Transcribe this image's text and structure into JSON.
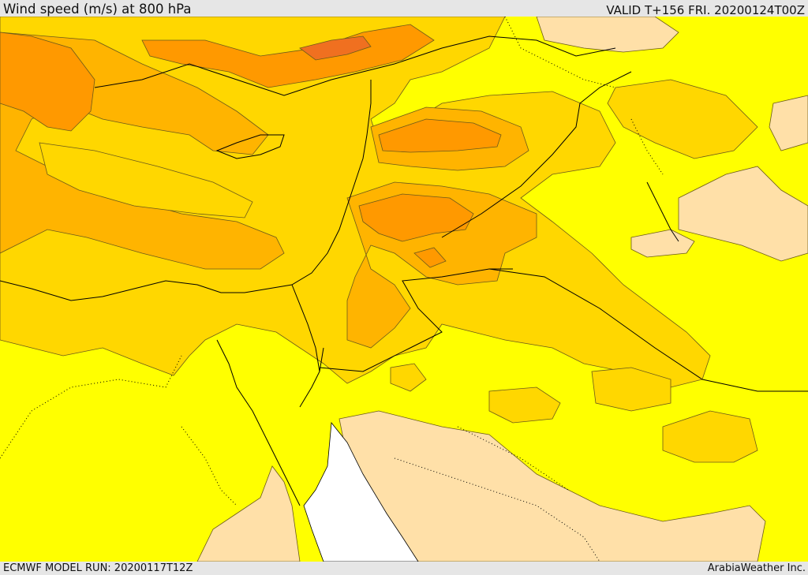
{
  "header": {
    "title": "Wind speed (m/s) at 800 hPa",
    "valid": "VALID T+156 FRI. 20200124T00Z"
  },
  "footer": {
    "model_run": "ECMWF MODEL RUN: 20200117T12Z",
    "credit": "ArabiaWeather Inc."
  },
  "colors": {
    "band_0_5": "#ffe0a8",
    "band_5_10": "#ffff00",
    "band_10_15": "#ffd700",
    "band_15_20": "#ffb400",
    "band_20_25": "#ff9900",
    "band_25_30": "#f07020",
    "sea_ice_free": "#ffffff",
    "coastline": "#000000"
  }
}
